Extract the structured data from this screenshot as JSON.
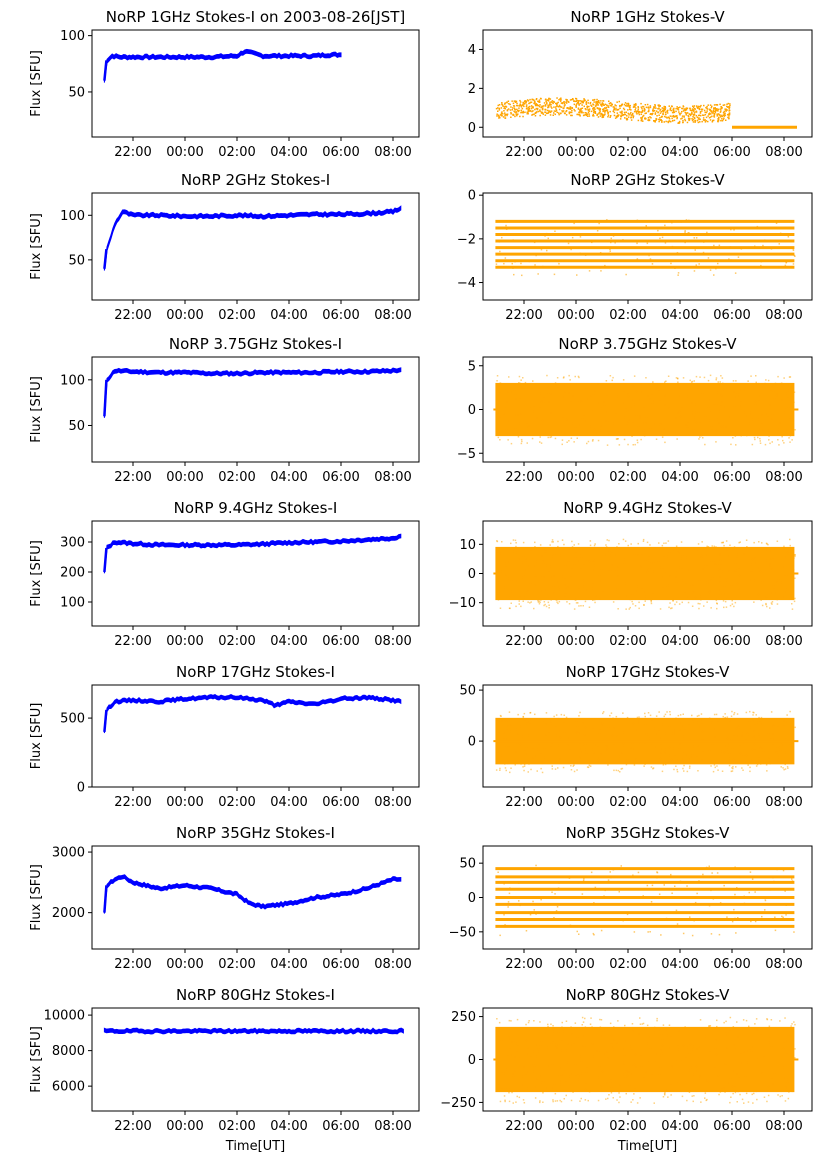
{
  "chart_data": [
    {
      "type": "line",
      "title": "NoRP 1GHz Stokes-I on 2003-08-26[JST]",
      "ylabel": "Flux [SFU]",
      "xlabel": "",
      "ylim": [
        10,
        105
      ],
      "yticks": [
        50,
        100
      ],
      "xticks": [
        "22:00",
        "00:00",
        "02:00",
        "04:00",
        "06:00",
        "08:00"
      ],
      "color": "#0000ff",
      "series": [
        {
          "x": [
            20.9,
            21.0,
            21.2,
            21.5,
            22,
            23,
            24,
            25,
            26,
            26.3,
            27,
            28,
            29,
            29.5,
            30.0
          ],
          "y": [
            60,
            78,
            82,
            81,
            81,
            81,
            81,
            81,
            82,
            86,
            82,
            82,
            82,
            83,
            83
          ]
        }
      ]
    },
    {
      "type": "scatter",
      "title": "NoRP 1GHz Stokes-V",
      "ylabel": "",
      "xlabel": "",
      "ylim": [
        -0.5,
        5
      ],
      "yticks": [
        0,
        2,
        4
      ],
      "xticks": [
        "22:00",
        "00:00",
        "02:00",
        "04:00",
        "06:00",
        "08:00"
      ],
      "color": "#ffa500",
      "series": [
        {
          "x": [
            20.9,
            22,
            23,
            24,
            25,
            26,
            27,
            28,
            29,
            29.9
          ],
          "y": [
            0.9,
            1.0,
            0.9,
            1.0,
            1.0,
            1.1,
            1.0,
            0.9,
            0.8,
            0.9
          ]
        }
      ]
    },
    {
      "type": "line",
      "title": "NoRP 2GHz Stokes-I",
      "ylabel": "Flux [SFU]",
      "xlabel": "",
      "ylim": [
        5,
        125
      ],
      "yticks": [
        50,
        100
      ],
      "xticks": [
        "22:00",
        "00:00",
        "02:00",
        "04:00",
        "06:00",
        "08:00"
      ],
      "color": "#0000ff",
      "series": [
        {
          "x": [
            20.9,
            21.0,
            21.3,
            21.6,
            22,
            23,
            24,
            25,
            26,
            27,
            28,
            29,
            30,
            31,
            32,
            32.3
          ],
          "y": [
            40,
            62,
            90,
            104,
            100,
            100,
            99,
            99,
            100,
            99,
            100,
            101,
            101,
            102,
            104,
            108
          ]
        }
      ]
    },
    {
      "type": "scatter",
      "title": "NoRP 2GHz Stokes-V",
      "ylabel": "",
      "xlabel": "",
      "ylim": [
        -4.8,
        0.1
      ],
      "yticks": [
        0,
        -2,
        -4
      ],
      "xticks": [
        "22:00",
        "00:00",
        "02:00",
        "04:00",
        "06:00",
        "08:00"
      ],
      "color": "#ffa500",
      "series": [
        {
          "x": [
            20.9,
            32.4
          ],
          "y": [
            -1.2,
            -3.7
          ]
        }
      ]
    },
    {
      "type": "line",
      "title": "NoRP 3.75GHz Stokes-I",
      "ylabel": "Flux [SFU]",
      "xlabel": "",
      "ylim": [
        10,
        125
      ],
      "yticks": [
        50,
        100
      ],
      "xticks": [
        "22:00",
        "00:00",
        "02:00",
        "04:00",
        "06:00",
        "08:00"
      ],
      "color": "#0000ff",
      "series": [
        {
          "x": [
            20.9,
            21.0,
            21.3,
            22,
            23,
            24,
            25,
            26,
            27,
            28,
            29,
            30,
            31,
            32,
            32.3
          ],
          "y": [
            60,
            100,
            110,
            109,
            108,
            108,
            107,
            107,
            108,
            108,
            108,
            109,
            109,
            110,
            111
          ]
        }
      ]
    },
    {
      "type": "scatter",
      "title": "NoRP 3.75GHz Stokes-V",
      "ylabel": "",
      "xlabel": "",
      "ylim": [
        -6,
        6
      ],
      "yticks": [
        -5,
        0,
        5
      ],
      "xticks": [
        "22:00",
        "00:00",
        "02:00",
        "04:00",
        "06:00",
        "08:00"
      ],
      "color": "#ffa500",
      "series": [
        {
          "x": [
            20.9,
            32.4
          ],
          "y": [
            -4,
            4
          ]
        }
      ]
    },
    {
      "type": "line",
      "title": "NoRP 9.4GHz Stokes-I",
      "ylabel": "Flux [SFU]",
      "xlabel": "",
      "ylim": [
        20,
        370
      ],
      "yticks": [
        100,
        200,
        300
      ],
      "xticks": [
        "22:00",
        "00:00",
        "02:00",
        "04:00",
        "06:00",
        "08:00"
      ],
      "color": "#0000ff",
      "series": [
        {
          "x": [
            20.9,
            21.0,
            21.3,
            22,
            23,
            24,
            25,
            26,
            27,
            28,
            29,
            30,
            31,
            32,
            32.3
          ],
          "y": [
            200,
            280,
            300,
            295,
            290,
            290,
            290,
            290,
            293,
            298,
            300,
            303,
            308,
            313,
            320
          ]
        }
      ]
    },
    {
      "type": "scatter",
      "title": "NoRP 9.4GHz Stokes-V",
      "ylabel": "",
      "xlabel": "",
      "ylim": [
        -18,
        18
      ],
      "yticks": [
        -10,
        0,
        10
      ],
      "xticks": [
        "22:00",
        "00:00",
        "02:00",
        "04:00",
        "06:00",
        "08:00"
      ],
      "color": "#ffa500",
      "series": [
        {
          "x": [
            20.9,
            32.4
          ],
          "y": [
            -12,
            12
          ]
        }
      ]
    },
    {
      "type": "line",
      "title": "NoRP 17GHz Stokes-I",
      "ylabel": "Flux [SFU]",
      "xlabel": "",
      "ylim": [
        0,
        740
      ],
      "yticks": [
        0,
        500
      ],
      "xticks": [
        "22:00",
        "00:00",
        "02:00",
        "04:00",
        "06:00",
        "08:00"
      ],
      "color": "#0000ff",
      "series": [
        {
          "x": [
            20.9,
            21.0,
            21.3,
            22,
            23,
            24,
            25,
            26,
            27,
            27.5,
            28,
            29,
            30,
            31,
            32,
            32.3
          ],
          "y": [
            400,
            560,
            620,
            630,
            620,
            640,
            650,
            650,
            630,
            590,
            620,
            600,
            640,
            650,
            630,
            620
          ]
        }
      ]
    },
    {
      "type": "scatter",
      "title": "NoRP 17GHz Stokes-V",
      "ylabel": "",
      "xlabel": "",
      "ylim": [
        -45,
        55
      ],
      "yticks": [
        0,
        50
      ],
      "xticks": [
        "22:00",
        "00:00",
        "02:00",
        "04:00",
        "06:00",
        "08:00"
      ],
      "color": "#ffa500",
      "series": [
        {
          "x": [
            20.9,
            32.4
          ],
          "y": [
            -30,
            30
          ]
        }
      ]
    },
    {
      "type": "line",
      "title": "NoRP 35GHz Stokes-I",
      "ylabel": "Flux [SFU]",
      "xlabel": "",
      "ylim": [
        1400,
        3100
      ],
      "yticks": [
        2000,
        3000
      ],
      "xticks": [
        "22:00",
        "00:00",
        "02:00",
        "04:00",
        "06:00",
        "08:00"
      ],
      "color": "#0000ff",
      "series": [
        {
          "x": [
            20.9,
            21.0,
            21.3,
            21.6,
            22,
            22.5,
            23,
            24,
            25,
            26,
            26.5,
            27,
            28,
            29,
            30,
            31,
            32,
            32.3
          ],
          "y": [
            2000,
            2450,
            2550,
            2600,
            2500,
            2450,
            2400,
            2450,
            2400,
            2300,
            2150,
            2100,
            2150,
            2250,
            2300,
            2400,
            2550,
            2550
          ]
        }
      ]
    },
    {
      "type": "scatter",
      "title": "NoRP 35GHz Stokes-V",
      "ylabel": "",
      "xlabel": "",
      "ylim": [
        -75,
        75
      ],
      "yticks": [
        -50,
        0,
        50
      ],
      "xticks": [
        "22:00",
        "00:00",
        "02:00",
        "04:00",
        "06:00",
        "08:00"
      ],
      "color": "#ffa500",
      "series": [
        {
          "x": [
            20.9,
            32.4
          ],
          "y": [
            -55,
            45
          ]
        }
      ]
    },
    {
      "type": "line",
      "title": "NoRP 80GHz Stokes-I",
      "ylabel": "Flux [SFU]",
      "xlabel": "Time[UT]",
      "ylim": [
        4600,
        10400
      ],
      "yticks": [
        6000,
        8000,
        10000
      ],
      "xticks": [
        "22:00",
        "00:00",
        "02:00",
        "04:00",
        "06:00",
        "08:00"
      ],
      "color": "#0000ff",
      "series": [
        {
          "x": [
            20.9,
            22,
            24,
            26,
            28,
            30,
            32,
            32.4
          ],
          "y": [
            9100,
            9100,
            9100,
            9100,
            9100,
            9100,
            9100,
            9100
          ]
        }
      ]
    },
    {
      "type": "scatter",
      "title": "NoRP 80GHz Stokes-V",
      "ylabel": "",
      "xlabel": "Time[UT]",
      "ylim": [
        -300,
        300
      ],
      "yticks": [
        -250,
        0,
        250
      ],
      "xticks": [
        "22:00",
        "00:00",
        "02:00",
        "04:00",
        "06:00",
        "08:00"
      ],
      "color": "#ffa500",
      "series": [
        {
          "x": [
            20.9,
            32.4
          ],
          "y": [
            -250,
            250
          ]
        }
      ]
    }
  ]
}
